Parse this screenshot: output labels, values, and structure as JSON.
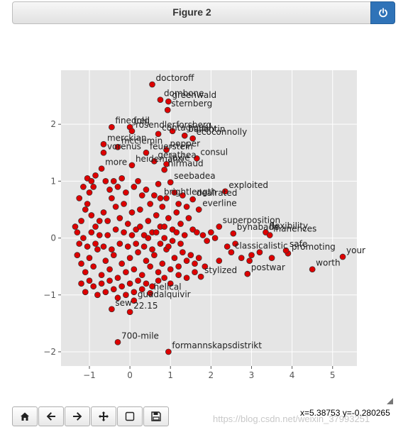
{
  "window": {
    "title": "Figure 2",
    "close_icon": "power-icon",
    "accent": "#2f73b8"
  },
  "toolbar": {
    "buttons": [
      {
        "name": "home-button",
        "icon": "home-icon"
      },
      {
        "name": "back-button",
        "icon": "arrow-left-icon"
      },
      {
        "name": "forward-button",
        "icon": "arrow-right-icon"
      },
      {
        "name": "pan-button",
        "icon": "move-icon"
      },
      {
        "name": "zoom-button",
        "icon": "zoom-rect-icon"
      },
      {
        "name": "save-button",
        "icon": "floppy-icon"
      }
    ],
    "coords": "x=5.38753 y=-0.280265"
  },
  "watermark": "https://blog.csdn.net/weixin_37993251",
  "chart_data": {
    "type": "scatter",
    "title": "",
    "xlabel": "",
    "ylabel": "",
    "xlim": [
      -1.7,
      5.6
    ],
    "ylim": [
      -2.25,
      2.95
    ],
    "xticks": [
      "−1",
      "0",
      "1",
      "2",
      "3",
      "4",
      "5"
    ],
    "yticks": [
      "−2",
      "−1",
      "0",
      "1",
      "2"
    ],
    "xtick_values": [
      -1,
      0,
      1,
      2,
      3,
      4,
      5
    ],
    "ytick_values": [
      -2,
      -1,
      0,
      1,
      2
    ],
    "grid": true,
    "background": "#e5e5e5",
    "marker_color": "#dd0000",
    "labeled_points": [
      {
        "label": "doctoroff",
        "x": 0.55,
        "y": 2.7
      },
      {
        "label": "dombone",
        "x": 0.75,
        "y": 2.43
      },
      {
        "label": "greenwald",
        "x": 0.95,
        "y": 2.4
      },
      {
        "label": "sternberg",
        "x": 0.93,
        "y": 2.25
      },
      {
        "label": "freij",
        "x": 0.0,
        "y": 1.95
      },
      {
        "label": "finegold",
        "x": -0.45,
        "y": 1.95
      },
      {
        "label": "rosendler",
        "x": 0.05,
        "y": 1.88
      },
      {
        "label": "forsberg",
        "x": 1.05,
        "y": 1.88
      },
      {
        "label": "contagiously",
        "x": 0.7,
        "y": 1.83
      },
      {
        "label": "ballentin",
        "x": 1.35,
        "y": 1.8
      },
      {
        "label": "ecoconnolly",
        "x": 1.55,
        "y": 1.75
      },
      {
        "label": "merckian",
        "x": -0.65,
        "y": 1.65
      },
      {
        "label": "mcclemin",
        "x": -0.3,
        "y": 1.6
      },
      {
        "label": "vorenus",
        "x": -0.65,
        "y": 1.5
      },
      {
        "label": "feuerstein",
        "x": 0.4,
        "y": 1.5
      },
      {
        "label": "popper",
        "x": 0.9,
        "y": 1.55
      },
      {
        "label": "consul",
        "x": 1.65,
        "y": 1.4
      },
      {
        "label": "gerathea",
        "x": 0.6,
        "y": 1.35
      },
      {
        "label": "loxie",
        "x": 0.9,
        "y": 1.3
      },
      {
        "label": "heidemann",
        "x": 0.05,
        "y": 1.28
      },
      {
        "label": "hirmaud",
        "x": 0.85,
        "y": 1.2
      },
      {
        "label": "more",
        "x": -0.7,
        "y": 1.22
      },
      {
        "label": "seebadea",
        "x": 1.0,
        "y": 0.98
      },
      {
        "label": "exploited",
        "x": 2.35,
        "y": 0.82
      },
      {
        "label": "brightlength",
        "x": 0.75,
        "y": 0.7
      },
      {
        "label": "dealrated",
        "x": 1.55,
        "y": 0.68
      },
      {
        "label": "everline",
        "x": 1.7,
        "y": 0.5
      },
      {
        "label": "superposition",
        "x": 2.2,
        "y": 0.2
      },
      {
        "label": "bynabade",
        "x": 2.55,
        "y": 0.08
      },
      {
        "label": "flexibility",
        "x": 3.35,
        "y": 0.1
      },
      {
        "label": "inanences",
        "x": 3.45,
        "y": 0.05
      },
      {
        "label": "classicalistic",
        "x": 2.5,
        "y": -0.25
      },
      {
        "label": "promoting",
        "x": 3.9,
        "y": -0.27
      },
      {
        "label": "safe",
        "x": 3.85,
        "y": -0.22
      },
      {
        "label": "your",
        "x": 5.25,
        "y": -0.33
      },
      {
        "label": "worth",
        "x": 4.5,
        "y": -0.55
      },
      {
        "label": "postwar",
        "x": 2.9,
        "y": -0.63
      },
      {
        "label": "stylized",
        "x": 1.75,
        "y": -0.68
      },
      {
        "label": "helical",
        "x": 0.5,
        "y": -0.97
      },
      {
        "label": "guadalquivir",
        "x": 0.1,
        "y": -1.1
      },
      {
        "label": "22.15",
        "x": 0.0,
        "y": -1.3
      },
      {
        "label": "sew",
        "x": -0.45,
        "y": -1.25
      },
      {
        "label": "700-mile",
        "x": -0.3,
        "y": -1.83
      },
      {
        "label": "formannskapsdistrikt",
        "x": 0.95,
        "y": -2.0
      }
    ],
    "cluster_points": [
      [
        -1.35,
        0.2
      ],
      [
        -1.2,
        0.3
      ],
      [
        -1.1,
        0.5
      ],
      [
        -1.0,
        0.8
      ],
      [
        -0.9,
        0.9
      ],
      [
        -1.3,
        0.1
      ],
      [
        -1.25,
        -0.1
      ],
      [
        -1.15,
        0.0
      ],
      [
        -1.05,
        0.6
      ],
      [
        -0.95,
        0.4
      ],
      [
        -0.85,
        0.2
      ],
      [
        -0.75,
        0.05
      ],
      [
        -0.65,
        0.45
      ],
      [
        -0.55,
        0.3
      ],
      [
        -0.45,
        0.7
      ],
      [
        -0.35,
        0.55
      ],
      [
        -0.25,
        0.35
      ],
      [
        -0.15,
        0.6
      ],
      [
        -0.05,
        0.25
      ],
      [
        0.05,
        0.45
      ],
      [
        0.15,
        0.15
      ],
      [
        0.25,
        0.5
      ],
      [
        0.35,
        0.05
      ],
      [
        0.45,
        0.3
      ],
      [
        0.55,
        0.1
      ],
      [
        0.65,
        0.4
      ],
      [
        0.75,
        0.2
      ],
      [
        0.85,
        0.0
      ],
      [
        0.95,
        0.35
      ],
      [
        1.05,
        0.15
      ],
      [
        1.15,
        0.45
      ],
      [
        1.25,
        0.25
      ],
      [
        1.35,
        0.05
      ],
      [
        1.45,
        0.35
      ],
      [
        1.55,
        0.15
      ],
      [
        1.65,
        0.1
      ],
      [
        1.8,
        0.05
      ],
      [
        1.9,
        -0.05
      ],
      [
        2.0,
        0.1
      ],
      [
        2.1,
        0.0
      ],
      [
        -1.3,
        -0.3
      ],
      [
        -1.2,
        -0.45
      ],
      [
        -1.1,
        -0.6
      ],
      [
        -1.0,
        -0.35
      ],
      [
        -0.9,
        -0.5
      ],
      [
        -0.8,
        -0.2
      ],
      [
        -0.7,
        -0.65
      ],
      [
        -0.6,
        -0.4
      ],
      [
        -0.5,
        -0.55
      ],
      [
        -0.4,
        -0.3
      ],
      [
        -0.3,
        -0.7
      ],
      [
        -0.2,
        -0.45
      ],
      [
        -0.1,
        -0.6
      ],
      [
        0.0,
        -0.35
      ],
      [
        0.1,
        -0.55
      ],
      [
        0.2,
        -0.25
      ],
      [
        0.3,
        -0.65
      ],
      [
        0.4,
        -0.4
      ],
      [
        0.5,
        -0.5
      ],
      [
        0.6,
        -0.3
      ],
      [
        0.7,
        -0.6
      ],
      [
        0.8,
        -0.45
      ],
      [
        0.9,
        -0.2
      ],
      [
        1.0,
        -0.55
      ],
      [
        1.1,
        -0.35
      ],
      [
        1.2,
        -0.5
      ],
      [
        1.3,
        -0.25
      ],
      [
        1.4,
        -0.4
      ],
      [
        1.5,
        -0.3
      ],
      [
        1.6,
        -0.45
      ],
      [
        1.7,
        -0.35
      ],
      [
        1.85,
        -0.5
      ],
      [
        -1.2,
        -0.8
      ],
      [
        -1.1,
        -0.95
      ],
      [
        -1.0,
        -0.75
      ],
      [
        -0.9,
        -0.85
      ],
      [
        -0.8,
        -1.0
      ],
      [
        -0.7,
        -0.8
      ],
      [
        -0.6,
        -0.95
      ],
      [
        -0.5,
        -0.75
      ],
      [
        -0.4,
        -0.9
      ],
      [
        -0.3,
        -1.05
      ],
      [
        -0.2,
        -0.85
      ],
      [
        -0.1,
        -1.0
      ],
      [
        0.0,
        -0.8
      ],
      [
        0.1,
        -0.95
      ],
      [
        0.2,
        -0.75
      ],
      [
        0.3,
        -0.9
      ],
      [
        0.4,
        -0.8
      ],
      [
        0.55,
        -0.85
      ],
      [
        0.7,
        -0.75
      ],
      [
        0.85,
        -0.7
      ],
      [
        1.0,
        -0.8
      ],
      [
        1.2,
        -0.65
      ],
      [
        1.4,
        -0.7
      ],
      [
        1.6,
        -0.6
      ],
      [
        -1.25,
        0.7
      ],
      [
        -1.15,
        0.9
      ],
      [
        -1.05,
        1.05
      ],
      [
        -0.95,
        1.0
      ],
      [
        -0.85,
        1.1
      ],
      [
        -0.6,
        1.0
      ],
      [
        -0.5,
        0.85
      ],
      [
        -0.4,
        1.0
      ],
      [
        -0.3,
        0.9
      ],
      [
        -0.2,
        1.05
      ],
      [
        -0.1,
        0.8
      ],
      [
        0.1,
        0.9
      ],
      [
        0.2,
        1.0
      ],
      [
        0.3,
        0.75
      ],
      [
        0.4,
        0.85
      ],
      [
        0.5,
        0.6
      ],
      [
        0.6,
        0.75
      ],
      [
        0.7,
        0.95
      ],
      [
        0.8,
        0.55
      ],
      [
        0.9,
        0.7
      ],
      [
        1.1,
        0.8
      ],
      [
        1.2,
        0.6
      ],
      [
        1.3,
        0.75
      ],
      [
        1.4,
        0.55
      ],
      [
        -1.05,
        -0.15
      ],
      [
        -0.95,
        0.1
      ],
      [
        -0.85,
        -0.1
      ],
      [
        -0.75,
        0.3
      ],
      [
        -0.65,
        -0.15
      ],
      [
        -0.55,
        0.05
      ],
      [
        -0.45,
        -0.2
      ],
      [
        -0.35,
        0.15
      ],
      [
        -0.25,
        -0.1
      ],
      [
        -0.15,
        0.1
      ],
      [
        -0.05,
        -0.15
      ],
      [
        0.05,
        0.05
      ],
      [
        0.15,
        -0.1
      ],
      [
        0.25,
        0.2
      ],
      [
        0.35,
        -0.15
      ],
      [
        0.45,
        0.0
      ],
      [
        0.55,
        -0.2
      ],
      [
        0.65,
        0.1
      ],
      [
        0.75,
        -0.1
      ],
      [
        0.85,
        0.2
      ],
      [
        0.95,
        -0.15
      ],
      [
        1.05,
        -0.05
      ],
      [
        1.15,
        0.1
      ],
      [
        1.25,
        -0.1
      ],
      [
        2.4,
        -0.15
      ],
      [
        2.6,
        -0.1
      ],
      [
        2.75,
        -0.35
      ],
      [
        3.0,
        -0.3
      ],
      [
        3.2,
        -0.25
      ],
      [
        3.5,
        -0.35
      ],
      [
        2.2,
        -0.4
      ],
      [
        2.95,
        -0.4
      ]
    ]
  }
}
